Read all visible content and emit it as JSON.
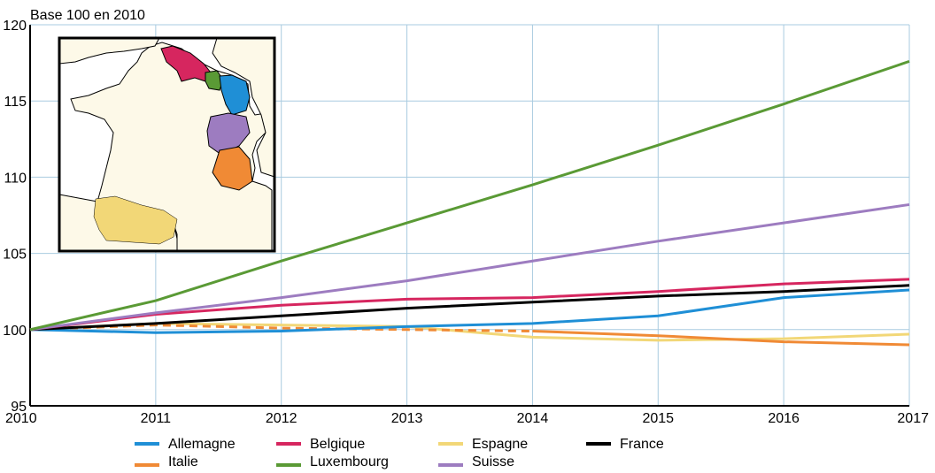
{
  "chart_data": {
    "type": "line",
    "ylabel": "Base 100 en 2010",
    "x": [
      2010,
      2011,
      2012,
      2013,
      2014,
      2015,
      2016,
      2017
    ],
    "xlim": [
      2010,
      2017
    ],
    "ylim": [
      95,
      120
    ],
    "yticks": [
      95,
      100,
      105,
      110,
      115,
      120
    ],
    "grid": true,
    "legend_position": "bottom",
    "series": [
      {
        "name": "Allemagne",
        "color": "#1f8fd6",
        "values": [
          100,
          99.8,
          99.9,
          100.2,
          100.4,
          100.9,
          102.1,
          102.6
        ]
      },
      {
        "name": "Belgique",
        "color": "#d6265f",
        "values": [
          100,
          101.0,
          101.6,
          102.0,
          102.1,
          102.5,
          103.0,
          103.3
        ]
      },
      {
        "name": "Espagne",
        "color": "#f2d777",
        "values": [
          100,
          100.4,
          100.3,
          100.2,
          99.5,
          99.3,
          99.4,
          99.7
        ]
      },
      {
        "name": "France",
        "color": "#000000",
        "values": [
          100,
          100.4,
          100.9,
          101.4,
          101.8,
          102.2,
          102.5,
          102.9
        ]
      },
      {
        "name": "Italie",
        "color": "#f08a35",
        "values": [
          100,
          100.3,
          100.1,
          100.0,
          99.9,
          99.6,
          99.2,
          99.0
        ],
        "dashed_until": 2014
      },
      {
        "name": "Luxembourg",
        "color": "#5a9a35",
        "values": [
          100,
          101.9,
          104.5,
          107.0,
          109.5,
          112.1,
          114.8,
          117.6
        ]
      },
      {
        "name": "Suisse",
        "color": "#9d7cc0",
        "values": [
          100,
          101.1,
          102.1,
          103.2,
          104.5,
          105.8,
          107.0,
          108.2
        ]
      }
    ]
  },
  "legend_rows": [
    [
      "Allemagne",
      "Belgique",
      "Espagne",
      "France"
    ],
    [
      "Italie",
      "Luxembourg",
      "Suisse"
    ]
  ],
  "inset_map": {
    "regions": [
      {
        "name": "Hauts-de-France",
        "color": "#d6265f"
      },
      {
        "name": "Grand Est (Luxembourg)",
        "color": "#5a9a35"
      },
      {
        "name": "Grand Est (Allemagne)",
        "color": "#1f8fd6"
      },
      {
        "name": "Suisse border",
        "color": "#9d7cc0"
      },
      {
        "name": "Italie border",
        "color": "#f08a35"
      },
      {
        "name": "Espagne border",
        "color": "#f2d777"
      }
    ],
    "land_color": "#fdf9e8"
  }
}
